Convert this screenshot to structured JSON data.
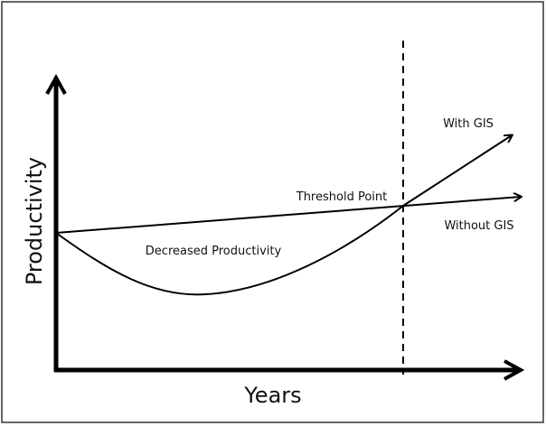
{
  "axes": {
    "y_label": "Productivity",
    "x_label": "Years"
  },
  "labels": {
    "with_gis": "With GIS",
    "without_gis": "Without GIS",
    "threshold": "Threshold Point",
    "decreased": "Decreased Productivity"
  }
}
